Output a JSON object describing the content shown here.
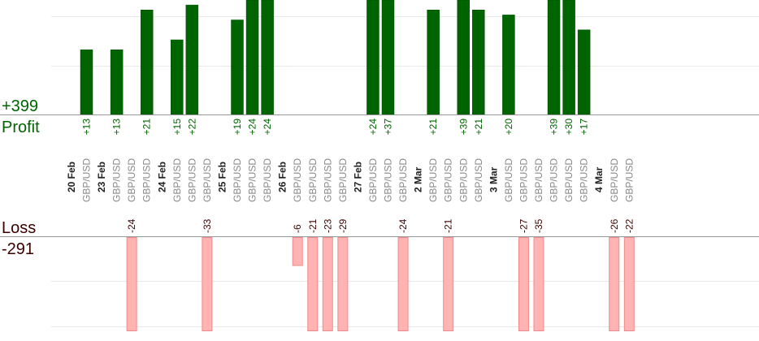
{
  "chart_data": {
    "type": "bar",
    "title": "",
    "profit": {
      "label": "Profit",
      "total": "+399",
      "color": "#006400",
      "label_color": "#006400"
    },
    "loss": {
      "label": "Loss",
      "total": "-291",
      "color": "#ffb3b3",
      "label_color": "#3a0000"
    },
    "pair": "GBP/USD",
    "dates": [
      {
        "label": "20 Feb",
        "slots": [
          {
            "pair": "GBP/USD",
            "value": 13,
            "value_label": "+13"
          }
        ]
      },
      {
        "label": "23 Feb",
        "slots": [
          {
            "pair": "GBP/USD",
            "value": 13,
            "value_label": "+13"
          },
          {
            "pair": "GBP/USD",
            "value": -24,
            "value_label": "-24"
          },
          {
            "pair": "GBP/USD",
            "value": 21,
            "value_label": "+21"
          }
        ]
      },
      {
        "label": "24 Feb",
        "slots": [
          {
            "pair": "GBP/USD",
            "value": 15,
            "value_label": "+15"
          },
          {
            "pair": "GBP/USD",
            "value": 22,
            "value_label": "+22"
          },
          {
            "pair": "GBP/USD",
            "value": -33,
            "value_label": "-33"
          }
        ]
      },
      {
        "label": "25 Feb",
        "slots": [
          {
            "pair": "GBP/USD",
            "value": 19,
            "value_label": "+19"
          },
          {
            "pair": "GBP/USD",
            "value": 24,
            "value_label": "+24"
          },
          {
            "pair": "GBP/USD",
            "value": 24,
            "value_label": "+24"
          }
        ]
      },
      {
        "label": "26 Feb",
        "slots": [
          {
            "pair": "GBP/USD",
            "value": -6,
            "value_label": "-6"
          },
          {
            "pair": "GBP/USD",
            "value": -21,
            "value_label": "-21"
          },
          {
            "pair": "GBP/USD",
            "value": -23,
            "value_label": "-23"
          },
          {
            "pair": "GBP/USD",
            "value": -29,
            "value_label": "-29"
          }
        ]
      },
      {
        "label": "27 Feb",
        "slots": [
          {
            "pair": "GBP/USD",
            "value": 24,
            "value_label": "+24"
          },
          {
            "pair": "GBP/USD",
            "value": 37,
            "value_label": "+37"
          },
          {
            "pair": "GBP/USD",
            "value": -24,
            "value_label": "-24"
          }
        ]
      },
      {
        "label": "2 Mar",
        "slots": [
          {
            "pair": "GBP/USD",
            "value": 21,
            "value_label": "+21"
          },
          {
            "pair": "GBP/USD",
            "value": -21,
            "value_label": "-21"
          },
          {
            "pair": "GBP/USD",
            "value": 39,
            "value_label": "+39"
          },
          {
            "pair": "GBP/USD",
            "value": 21,
            "value_label": "+21"
          }
        ]
      },
      {
        "label": "3 Mar",
        "slots": [
          {
            "pair": "GBP/USD",
            "value": 20,
            "value_label": "+20"
          },
          {
            "pair": "GBP/USD",
            "value": -27,
            "value_label": "-27"
          },
          {
            "pair": "GBP/USD",
            "value": -35,
            "value_label": "-35"
          },
          {
            "pair": "GBP/USD",
            "value": 39,
            "value_label": "+39"
          },
          {
            "pair": "GBP/USD",
            "value": 30,
            "value_label": "+30"
          },
          {
            "pair": "GBP/USD",
            "value": 17,
            "value_label": "+17"
          }
        ]
      },
      {
        "label": "4 Mar",
        "slots": [
          {
            "pair": "GBP/USD",
            "value": -26,
            "value_label": "-26"
          },
          {
            "pair": "GBP/USD",
            "value": -22,
            "value_label": "-22"
          }
        ]
      }
    ],
    "profit_ylim": [
      0,
      23
    ],
    "loss_ylim": [
      0,
      20
    ],
    "grid": true
  }
}
